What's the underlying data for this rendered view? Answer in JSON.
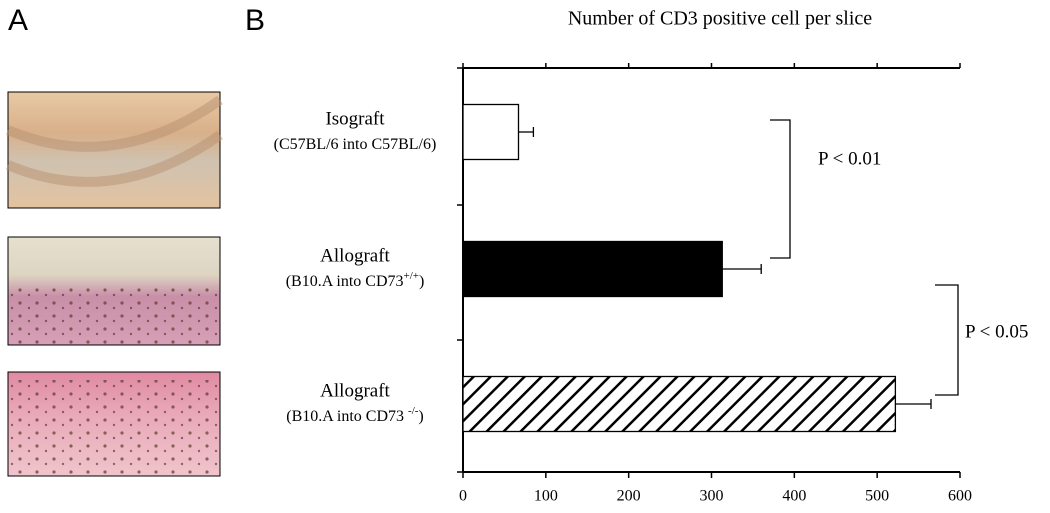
{
  "panel_labels": [
    "A",
    "B"
  ],
  "chart_data": {
    "type": "hbar",
    "title": "Number of CD3 positive cell per slice",
    "categories": [
      "Isograft",
      "Allograft",
      "Allograft"
    ],
    "sublabels": [
      {
        "text": "(C57BL/6 into C57BL/6)"
      },
      {
        "text": "(B10.A into CD73",
        "sup": "+/+",
        "after": ")"
      },
      {
        "text": "(B10.A into CD73 ",
        "sup": "-/-",
        "after": ")"
      }
    ],
    "values": [
      67,
      313,
      522
    ],
    "errors": [
      18,
      47,
      43
    ],
    "colors": [
      "#ffffff",
      "#000000",
      "#000000"
    ],
    "patterns": [
      "solid",
      "solid",
      "hatch"
    ],
    "xlim": [
      0,
      600
    ],
    "xticks": [
      0,
      100,
      200,
      300,
      400,
      500,
      600
    ],
    "annotations": [
      "P < 0.01",
      "P < 0.05"
    ]
  }
}
